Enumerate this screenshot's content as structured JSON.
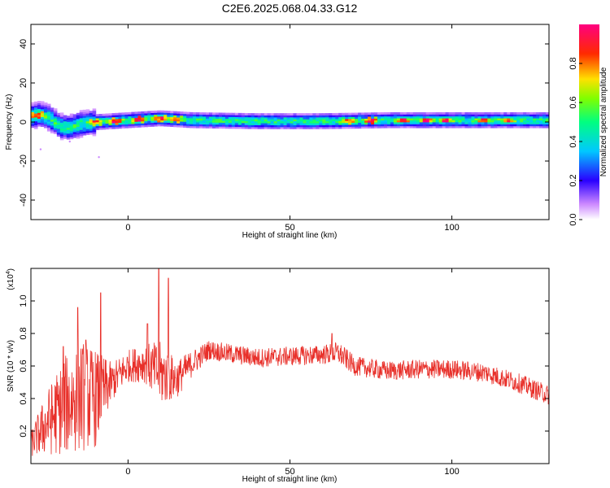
{
  "figure": {
    "title": "C2E6.2025.068.04.33.G12"
  },
  "chart_data": [
    {
      "type": "heatmap",
      "xlabel": "Height of straight line (km)",
      "ylabel": "Frequency (Hz)",
      "xlim": [
        -30,
        130
      ],
      "ylim": [
        -50,
        50
      ],
      "xticks": [
        0,
        50,
        100
      ],
      "yticks": [
        -40,
        -20,
        0,
        20,
        40
      ],
      "grid": false,
      "colormap": "rainbow",
      "colorbar": {
        "label": "Normalized spectral amplitude",
        "range": [
          0,
          1
        ],
        "ticks": [
          "0.0",
          "0.2",
          "0.4",
          "0.6",
          "0.8"
        ]
      },
      "band": {
        "center_hz": [
          {
            "x": -30,
            "y": 3
          },
          {
            "x": -27,
            "y": 4
          },
          {
            "x": -24,
            "y": 2
          },
          {
            "x": -21,
            "y": -2
          },
          {
            "x": -18,
            "y": -3
          },
          {
            "x": -15,
            "y": -1
          },
          {
            "x": -10,
            "y": 0
          },
          {
            "x": 0,
            "y": 1
          },
          {
            "x": 10,
            "y": 2
          },
          {
            "x": 20,
            "y": 1
          },
          {
            "x": 40,
            "y": 0.5
          },
          {
            "x": 60,
            "y": 0.5
          },
          {
            "x": 80,
            "y": 1
          },
          {
            "x": 100,
            "y": 1
          },
          {
            "x": 130,
            "y": 1
          }
        ],
        "halfwidth_hz": 2,
        "hotspots": [
          {
            "x": -28,
            "amp": 0.8
          },
          {
            "x": -10,
            "amp": 0.7
          },
          {
            "x": -4,
            "amp": 0.9
          },
          {
            "x": 3,
            "amp": 0.95
          },
          {
            "x": 10,
            "amp": 0.8
          },
          {
            "x": 15,
            "amp": 0.7
          },
          {
            "x": 68,
            "amp": 0.75
          },
          {
            "x": 75,
            "amp": 0.85
          },
          {
            "x": 85,
            "amp": 0.85
          },
          {
            "x": 92,
            "amp": 0.95
          },
          {
            "x": 98,
            "amp": 0.9
          },
          {
            "x": 110,
            "amp": 0.75
          },
          {
            "x": 117,
            "amp": 0.7
          }
        ]
      }
    },
    {
      "type": "line",
      "xlabel": "Height of straight line (km)",
      "ylabel": "SNR (10 * v/v)",
      "y_multiplier": "(x10",
      "y_multiplier_exp": "4",
      "y_multiplier_close": ")",
      "xlim": [
        -30,
        130
      ],
      "ylim": [
        0,
        1.2
      ],
      "xticks": [
        0,
        50,
        100
      ],
      "yticks": [
        0.2,
        0.4,
        0.6,
        0.8,
        1.0
      ],
      "grid": false,
      "series": [
        {
          "color": "#e8302a",
          "envelope": [
            {
              "x": -30,
              "mean": 0.12,
              "amp": 0.08
            },
            {
              "x": -25,
              "mean": 0.25,
              "amp": 0.2
            },
            {
              "x": -20,
              "mean": 0.35,
              "amp": 0.3
            },
            {
              "x": -15,
              "mean": 0.42,
              "amp": 0.35
            },
            {
              "x": -10,
              "mean": 0.4,
              "amp": 0.3
            },
            {
              "x": -5,
              "mean": 0.5,
              "amp": 0.12
            },
            {
              "x": 0,
              "mean": 0.6,
              "amp": 0.1
            },
            {
              "x": 5,
              "mean": 0.62,
              "amp": 0.12
            },
            {
              "x": 10,
              "mean": 0.55,
              "amp": 0.2
            },
            {
              "x": 15,
              "mean": 0.52,
              "amp": 0.12
            },
            {
              "x": 20,
              "mean": 0.62,
              "amp": 0.08
            },
            {
              "x": 25,
              "mean": 0.7,
              "amp": 0.06
            },
            {
              "x": 30,
              "mean": 0.68,
              "amp": 0.06
            },
            {
              "x": 40,
              "mean": 0.65,
              "amp": 0.06
            },
            {
              "x": 50,
              "mean": 0.66,
              "amp": 0.06
            },
            {
              "x": 60,
              "mean": 0.67,
              "amp": 0.06
            },
            {
              "x": 65,
              "mean": 0.68,
              "amp": 0.07
            },
            {
              "x": 70,
              "mean": 0.6,
              "amp": 0.06
            },
            {
              "x": 80,
              "mean": 0.57,
              "amp": 0.06
            },
            {
              "x": 90,
              "mean": 0.58,
              "amp": 0.06
            },
            {
              "x": 100,
              "mean": 0.58,
              "amp": 0.06
            },
            {
              "x": 110,
              "mean": 0.56,
              "amp": 0.06
            },
            {
              "x": 120,
              "mean": 0.5,
              "amp": 0.06
            },
            {
              "x": 130,
              "mean": 0.42,
              "amp": 0.06
            }
          ],
          "spikes": [
            {
              "x": -15.5,
              "y": 0.96
            },
            {
              "x": -8.5,
              "y": 1.05
            },
            {
              "x": 6,
              "y": 0.86
            },
            {
              "x": 9.5,
              "y": 1.2
            },
            {
              "x": 12.5,
              "y": 1.14
            },
            {
              "x": -20,
              "y": 0.72
            },
            {
              "x": -13,
              "y": 0.76
            },
            {
              "x": 63,
              "y": 0.8
            }
          ]
        }
      ]
    }
  ]
}
